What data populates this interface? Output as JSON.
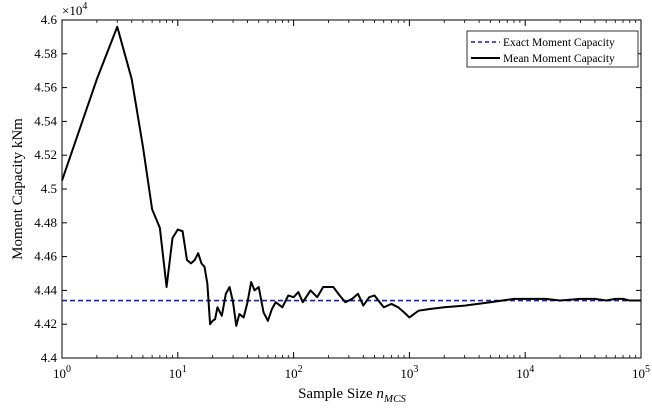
{
  "chart_data": {
    "type": "line",
    "title": "",
    "xlabel": "Sample Size",
    "xlabel_var": "n",
    "xlabel_sub": "MCS",
    "ylabel": "Moment Capacity kNm",
    "y_multiplier_base": "×10",
    "y_multiplier_exp": "4",
    "xscale": "log",
    "xlim": [
      1,
      100000
    ],
    "ylim": [
      44000,
      46000
    ],
    "grid": false,
    "legend_position": "top-right",
    "x_tick_labels": [
      {
        "base": "10",
        "exp": "0"
      },
      {
        "base": "10",
        "exp": "1"
      },
      {
        "base": "10",
        "exp": "2"
      },
      {
        "base": "10",
        "exp": "3"
      },
      {
        "base": "10",
        "exp": "4"
      },
      {
        "base": "10",
        "exp": "5"
      }
    ],
    "y_ticks": [
      "4.4",
      "4.42",
      "4.44",
      "4.46",
      "4.48",
      "4.5",
      "4.52",
      "4.54",
      "4.56",
      "4.58",
      "4.6"
    ],
    "series": [
      {
        "name": "Exact Moment Capacity",
        "style": "dashed",
        "color": "#1f1fa8",
        "x": [
          1,
          100000
        ],
        "y": [
          44340,
          44340
        ]
      },
      {
        "name": "Mean Moment Capacity",
        "style": "solid",
        "color": "#000000",
        "x": [
          1,
          2,
          3,
          4,
          5,
          6,
          7,
          8,
          9,
          10,
          11,
          12,
          13,
          14,
          15,
          16,
          17,
          18,
          19,
          20,
          21,
          22,
          24,
          26,
          28,
          30,
          32,
          34,
          37,
          40,
          43,
          46,
          50,
          55,
          60,
          65,
          70,
          80,
          90,
          100,
          110,
          120,
          140,
          160,
          180,
          200,
          220,
          250,
          280,
          320,
          360,
          400,
          450,
          500,
          600,
          700,
          800,
          900,
          1000,
          1200,
          1500,
          2000,
          3000,
          5000,
          8000,
          10000,
          15000,
          20000,
          30000,
          40000,
          50000,
          60000,
          70000,
          80000,
          100000
        ],
        "y": [
          45050,
          45650,
          45960,
          45650,
          45250,
          44880,
          44770,
          44420,
          44710,
          44760,
          44750,
          44580,
          44560,
          44580,
          44620,
          44560,
          44540,
          44440,
          44200,
          44220,
          44230,
          44300,
          44250,
          44380,
          44420,
          44330,
          44190,
          44260,
          44240,
          44330,
          44450,
          44400,
          44420,
          44270,
          44220,
          44290,
          44330,
          44300,
          44370,
          44360,
          44390,
          44330,
          44400,
          44360,
          44420,
          44420,
          44420,
          44370,
          44330,
          44350,
          44380,
          44310,
          44360,
          44370,
          44300,
          44320,
          44300,
          44270,
          44240,
          44280,
          44290,
          44300,
          44310,
          44330,
          44350,
          44350,
          44350,
          44340,
          44350,
          44350,
          44340,
          44350,
          44350,
          44340,
          44340
        ]
      }
    ]
  }
}
